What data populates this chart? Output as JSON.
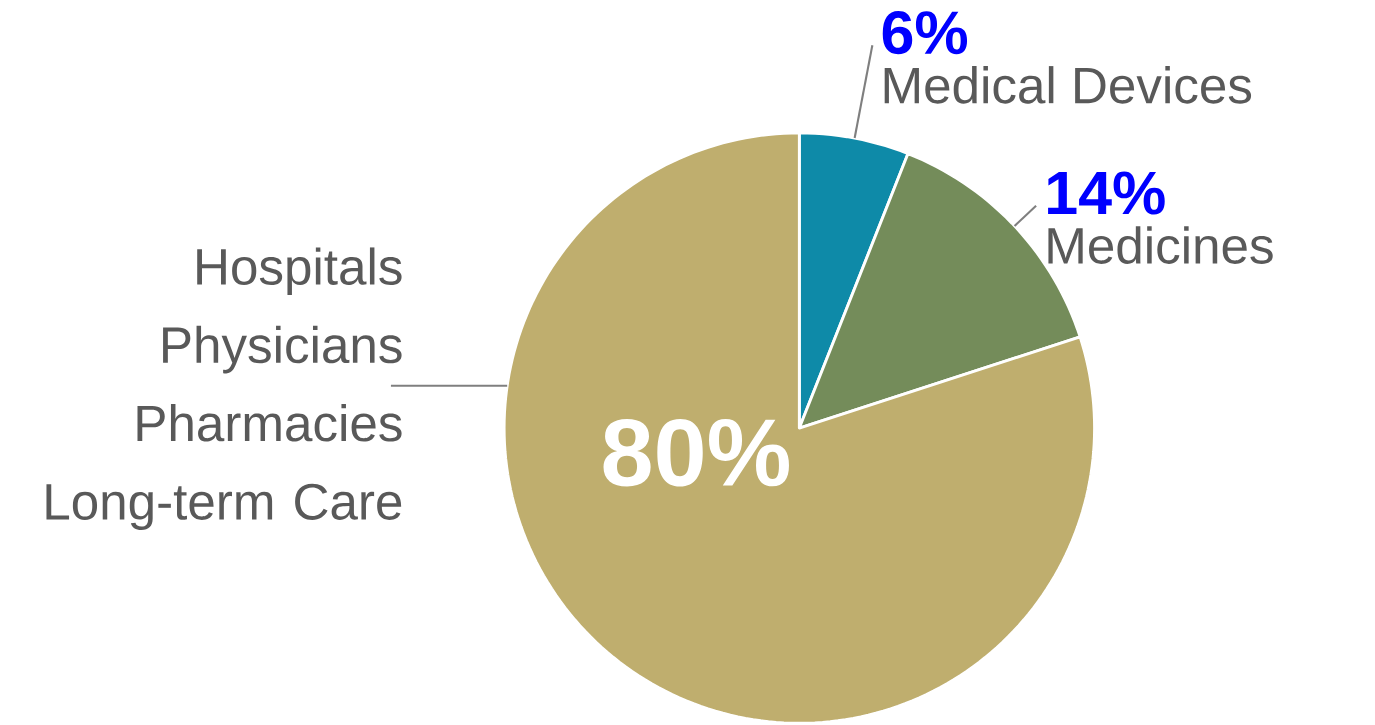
{
  "chart_data": {
    "type": "pie",
    "categories": [
      "Medical Devices",
      "Medicines",
      "Hospitals Physicians Pharmacies Long-term Care"
    ],
    "values": [
      6,
      14,
      80
    ],
    "colors": [
      "#0e8aa8",
      "#748c5a",
      "#bfae6e"
    ],
    "value_labels": [
      "6%",
      "14%",
      "80%"
    ]
  }
}
